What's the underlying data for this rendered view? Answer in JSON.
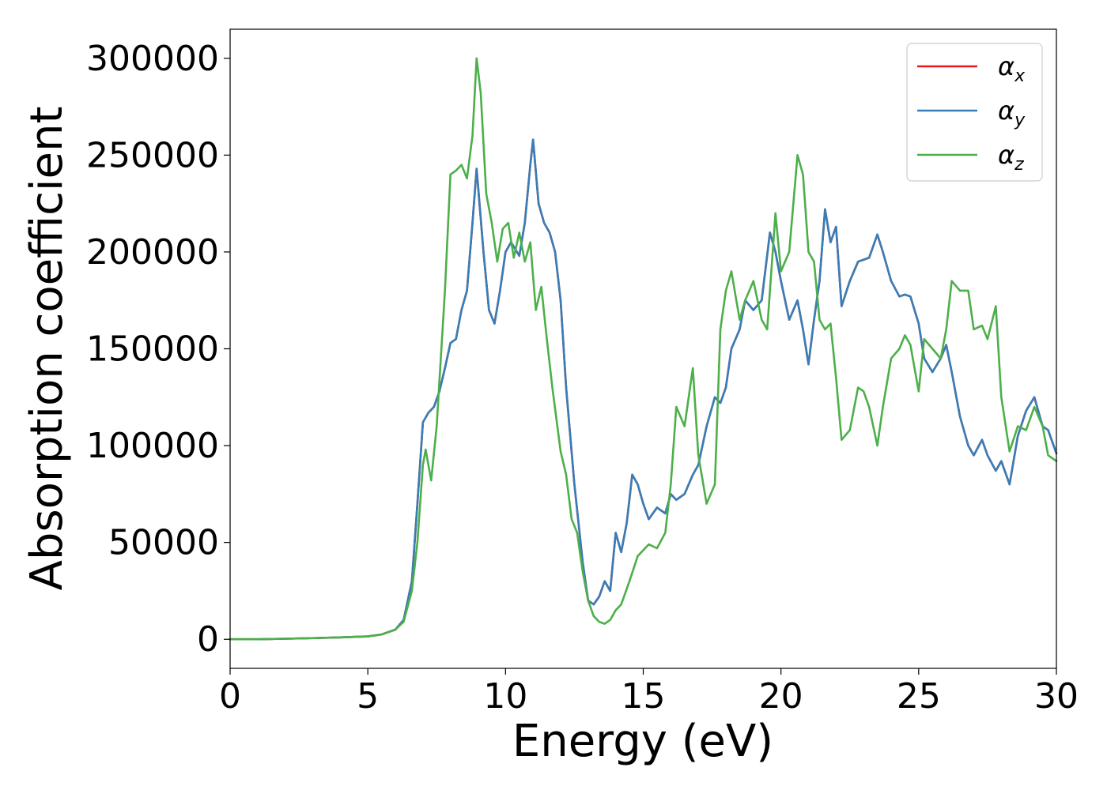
{
  "chart_data": {
    "type": "line",
    "xlabel": "Energy (eV)",
    "ylabel": "Absorption coefficient",
    "xlim": [
      0,
      30
    ],
    "ylim": [
      -15000,
      315000
    ],
    "xticks": [
      0,
      5,
      10,
      15,
      20,
      25,
      30
    ],
    "xtick_labels": [
      "0",
      "5",
      "10",
      "15",
      "20",
      "25",
      "30"
    ],
    "yticks": [
      0,
      50000,
      100000,
      150000,
      200000,
      250000,
      300000
    ],
    "ytick_labels": [
      "0",
      "50000",
      "100000",
      "150000",
      "200000",
      "250000",
      "300000"
    ],
    "grid": false,
    "legend_position": "top-right",
    "series": [
      {
        "name": "α",
        "subscript": "x",
        "color": "#e41a1c",
        "x": [
          0,
          1,
          2,
          3,
          4,
          5,
          5.5,
          6,
          6.3,
          6.6,
          6.8,
          7.0,
          7.2,
          7.4,
          7.6,
          7.8,
          8.0,
          8.2,
          8.4,
          8.6,
          8.8,
          8.95,
          9.2,
          9.4,
          9.6,
          9.8,
          10.0,
          10.2,
          10.5,
          10.7,
          10.9,
          11.0,
          11.2,
          11.4,
          11.6,
          11.8,
          12.0,
          12.2,
          12.5,
          12.8,
          13.0,
          13.2,
          13.4,
          13.6,
          13.8,
          14.0,
          14.2,
          14.4,
          14.6,
          14.8,
          15.0,
          15.2,
          15.5,
          15.8,
          16.0,
          16.2,
          16.5,
          16.8,
          17.0,
          17.3,
          17.6,
          17.8,
          18.0,
          18.2,
          18.5,
          18.7,
          19.0,
          19.3,
          19.6,
          19.8,
          20.0,
          20.3,
          20.6,
          20.8,
          21.0,
          21.2,
          21.4,
          21.6,
          21.8,
          22.0,
          22.2,
          22.5,
          22.8,
          23.0,
          23.2,
          23.5,
          23.7,
          24.0,
          24.3,
          24.5,
          24.7,
          25.0,
          25.2,
          25.5,
          25.8,
          26.0,
          26.2,
          26.5,
          26.8,
          27.0,
          27.3,
          27.5,
          27.8,
          28.0,
          28.3,
          28.6,
          28.9,
          29.2,
          29.5,
          29.7,
          30.0
        ],
        "y": [
          0,
          0,
          300,
          600,
          1000,
          1500,
          2500,
          5000,
          10000,
          30000,
          70000,
          112000,
          117000,
          120000,
          128000,
          140000,
          153000,
          155000,
          170000,
          180000,
          215000,
          243000,
          200000,
          170000,
          163000,
          180000,
          200000,
          205000,
          198000,
          215000,
          245000,
          258000,
          225000,
          215000,
          210000,
          200000,
          175000,
          130000,
          80000,
          40000,
          20000,
          18000,
          22000,
          30000,
          25000,
          55000,
          45000,
          60000,
          85000,
          80000,
          70000,
          62000,
          68000,
          65000,
          75000,
          72000,
          75000,
          85000,
          90000,
          110000,
          125000,
          122000,
          130000,
          150000,
          160000,
          175000,
          170000,
          175000,
          210000,
          200000,
          185000,
          165000,
          175000,
          160000,
          142000,
          165000,
          185000,
          222000,
          205000,
          213000,
          172000,
          185000,
          195000,
          196000,
          197000,
          209000,
          200000,
          185000,
          177000,
          178000,
          177000,
          163000,
          145000,
          138000,
          145000,
          152000,
          138000,
          115000,
          100000,
          95000,
          103000,
          95000,
          87000,
          92000,
          80000,
          105000,
          118000,
          125000,
          110000,
          108000,
          96000
        ]
      },
      {
        "name": "α",
        "subscript": "y",
        "color": "#377eb8",
        "x": [
          0,
          1,
          2,
          3,
          4,
          5,
          5.5,
          6,
          6.3,
          6.6,
          6.8,
          7.0,
          7.2,
          7.4,
          7.6,
          7.8,
          8.0,
          8.2,
          8.4,
          8.6,
          8.8,
          8.95,
          9.2,
          9.4,
          9.6,
          9.8,
          10.0,
          10.2,
          10.5,
          10.7,
          10.9,
          11.0,
          11.2,
          11.4,
          11.6,
          11.8,
          12.0,
          12.2,
          12.5,
          12.8,
          13.0,
          13.2,
          13.4,
          13.6,
          13.8,
          14.0,
          14.2,
          14.4,
          14.6,
          14.8,
          15.0,
          15.2,
          15.5,
          15.8,
          16.0,
          16.2,
          16.5,
          16.8,
          17.0,
          17.3,
          17.6,
          17.8,
          18.0,
          18.2,
          18.5,
          18.7,
          19.0,
          19.3,
          19.6,
          19.8,
          20.0,
          20.3,
          20.6,
          20.8,
          21.0,
          21.2,
          21.4,
          21.6,
          21.8,
          22.0,
          22.2,
          22.5,
          22.8,
          23.0,
          23.2,
          23.5,
          23.7,
          24.0,
          24.3,
          24.5,
          24.7,
          25.0,
          25.2,
          25.5,
          25.8,
          26.0,
          26.2,
          26.5,
          26.8,
          27.0,
          27.3,
          27.5,
          27.8,
          28.0,
          28.3,
          28.6,
          28.9,
          29.2,
          29.5,
          29.7,
          30.0
        ],
        "y": [
          0,
          0,
          300,
          600,
          1000,
          1500,
          2500,
          5000,
          10000,
          30000,
          70000,
          112000,
          117000,
          120000,
          128000,
          140000,
          153000,
          155000,
          170000,
          180000,
          215000,
          243000,
          200000,
          170000,
          163000,
          180000,
          200000,
          205000,
          198000,
          215000,
          245000,
          258000,
          225000,
          215000,
          210000,
          200000,
          175000,
          130000,
          80000,
          40000,
          20000,
          18000,
          22000,
          30000,
          25000,
          55000,
          45000,
          60000,
          85000,
          80000,
          70000,
          62000,
          68000,
          65000,
          75000,
          72000,
          75000,
          85000,
          90000,
          110000,
          125000,
          122000,
          130000,
          150000,
          160000,
          175000,
          170000,
          175000,
          210000,
          200000,
          185000,
          165000,
          175000,
          160000,
          142000,
          165000,
          185000,
          222000,
          205000,
          213000,
          172000,
          185000,
          195000,
          196000,
          197000,
          209000,
          200000,
          185000,
          177000,
          178000,
          177000,
          163000,
          145000,
          138000,
          145000,
          152000,
          138000,
          115000,
          100000,
          95000,
          103000,
          95000,
          87000,
          92000,
          80000,
          105000,
          118000,
          125000,
          110000,
          108000,
          96000
        ]
      },
      {
        "name": "α",
        "subscript": "z",
        "color": "#4daf4a",
        "x": [
          0,
          1,
          2,
          3,
          4,
          5,
          5.5,
          6,
          6.3,
          6.6,
          6.8,
          7.0,
          7.1,
          7.3,
          7.5,
          7.8,
          8.0,
          8.2,
          8.4,
          8.6,
          8.8,
          8.95,
          9.1,
          9.3,
          9.5,
          9.7,
          9.9,
          10.1,
          10.3,
          10.5,
          10.7,
          10.9,
          11.1,
          11.3,
          11.5,
          11.7,
          12.0,
          12.2,
          12.4,
          12.6,
          12.8,
          13.0,
          13.2,
          13.4,
          13.6,
          13.8,
          14.0,
          14.2,
          14.5,
          14.8,
          15.0,
          15.2,
          15.5,
          15.8,
          16.0,
          16.2,
          16.5,
          16.8,
          17.0,
          17.3,
          17.6,
          17.8,
          18.0,
          18.2,
          18.5,
          18.7,
          19.0,
          19.3,
          19.5,
          19.8,
          20.0,
          20.3,
          20.6,
          20.8,
          21.0,
          21.2,
          21.4,
          21.6,
          21.8,
          22.0,
          22.2,
          22.5,
          22.8,
          23.0,
          23.2,
          23.5,
          23.7,
          24.0,
          24.3,
          24.5,
          24.7,
          25.0,
          25.2,
          25.5,
          25.8,
          26.0,
          26.2,
          26.5,
          26.8,
          27.0,
          27.3,
          27.5,
          27.8,
          28.0,
          28.3,
          28.6,
          28.9,
          29.2,
          29.5,
          29.7,
          30.0
        ],
        "y": [
          0,
          0,
          300,
          600,
          1000,
          1500,
          2500,
          5000,
          9000,
          25000,
          50000,
          90000,
          98000,
          82000,
          110000,
          180000,
          240000,
          242000,
          245000,
          238000,
          260000,
          300000,
          282000,
          230000,
          215000,
          195000,
          212000,
          215000,
          197000,
          210000,
          195000,
          205000,
          170000,
          182000,
          155000,
          130000,
          97000,
          85000,
          62000,
          55000,
          35000,
          20000,
          12000,
          9000,
          8000,
          10000,
          15000,
          18000,
          30000,
          43000,
          46000,
          49000,
          47000,
          55000,
          80000,
          120000,
          110000,
          140000,
          95000,
          70000,
          80000,
          160000,
          180000,
          190000,
          165000,
          175000,
          185000,
          165000,
          160000,
          220000,
          190000,
          200000,
          250000,
          240000,
          200000,
          195000,
          165000,
          160000,
          163000,
          135000,
          103000,
          108000,
          130000,
          128000,
          120000,
          100000,
          120000,
          145000,
          150000,
          157000,
          152000,
          128000,
          155000,
          150000,
          145000,
          160000,
          185000,
          180000,
          180000,
          160000,
          162000,
          155000,
          172000,
          125000,
          97000,
          110000,
          108000,
          120000,
          110000,
          95000,
          92000
        ]
      }
    ]
  }
}
